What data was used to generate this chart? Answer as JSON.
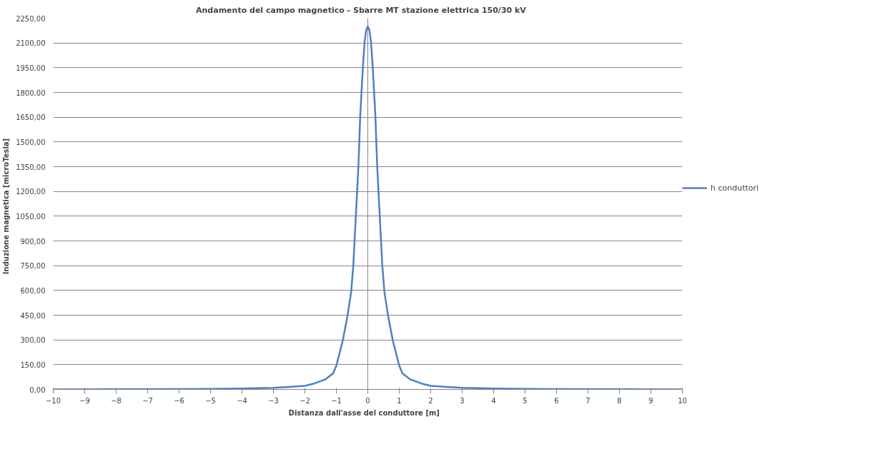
{
  "chart_data": {
    "type": "line",
    "title": "Andamento  del campo magnetico  - Sbarre MT stazione  elettrica  150/30  kV",
    "xlabel": "Distanza  dall'asse  del conduttore  [m]",
    "ylabel": "Induzione  magnetica  [microTesla]",
    "x": [
      -10,
      -8,
      -6,
      -5,
      -4,
      -3,
      -2.5,
      -2,
      -1.7,
      -1.35,
      -1.1,
      -1,
      -0.8,
      -0.65,
      -0.53,
      -0.46,
      -0.38,
      -0.3,
      -0.24,
      -0.16,
      -0.1,
      -0.05,
      0,
      0.05,
      0.1,
      0.16,
      0.24,
      0.3,
      0.38,
      0.46,
      0.53,
      0.65,
      0.8,
      1,
      1.1,
      1.35,
      1.7,
      2,
      2.5,
      3,
      4,
      5,
      6,
      8,
      10
    ],
    "series": [
      {
        "name": "h conduttori",
        "color": "#4f81bd",
        "values": [
          0,
          1,
          2,
          3,
          5,
          10,
          15,
          22,
          36,
          61,
          97,
          144,
          292,
          441,
          589,
          754,
          1051,
          1347,
          1661,
          1942,
          2110,
          2180,
          2200,
          2180,
          2110,
          1942,
          1661,
          1347,
          1051,
          754,
          589,
          441,
          292,
          144,
          97,
          61,
          36,
          22,
          15,
          10,
          5,
          3,
          2,
          1,
          0
        ]
      }
    ],
    "xlim": [
      -10,
      10
    ],
    "xticks": [
      -10,
      -9,
      -8,
      -7,
      -6,
      -5,
      -4,
      -3,
      -2,
      -1,
      0,
      1,
      2,
      3,
      4,
      5,
      6,
      7,
      8,
      9,
      10
    ],
    "ylim": [
      0,
      2250
    ],
    "yticks": [
      {
        "value": 0,
        "label": "0,00"
      },
      {
        "value": 150,
        "label": "150,00"
      },
      {
        "value": 300,
        "label": "300,00"
      },
      {
        "value": 450,
        "label": "450,00"
      },
      {
        "value": 600,
        "label": "600,00"
      },
      {
        "value": 750,
        "label": "750,00"
      },
      {
        "value": 900,
        "label": "900,00"
      },
      {
        "value": 1050,
        "label": "1050,00"
      },
      {
        "value": 1200,
        "label": "1200,00"
      },
      {
        "value": 1350,
        "label": "1350,00"
      },
      {
        "value": 1500,
        "label": "1500,00"
      },
      {
        "value": 1650,
        "label": "1650,00"
      },
      {
        "value": 1800,
        "label": "1800,00"
      },
      {
        "value": 1950,
        "label": "1950,00"
      },
      {
        "value": 2100,
        "label": "2100,00"
      },
      {
        "value": 2250,
        "label": "2250,00"
      }
    ],
    "ref_lines": [
      {
        "axis": "x",
        "value": 0,
        "color": "#868686"
      }
    ],
    "grid": "y",
    "legend": "right",
    "marker": "none",
    "line_style": "solid"
  }
}
